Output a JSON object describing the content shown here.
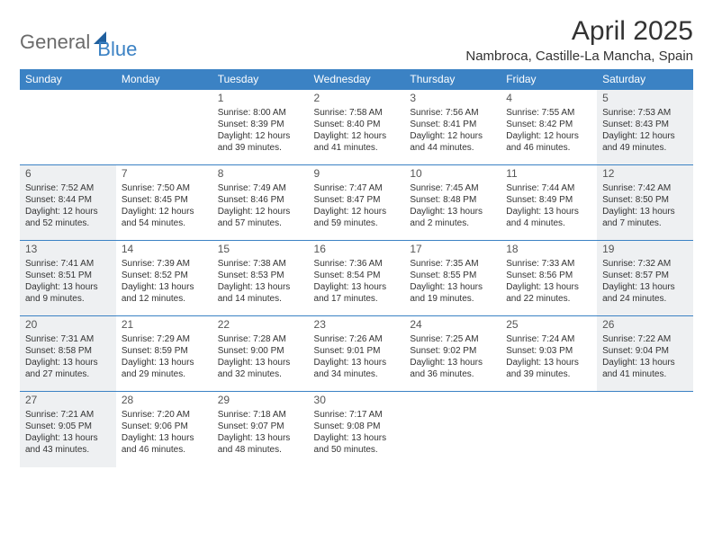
{
  "logo": {
    "general": "General",
    "blue": "Blue"
  },
  "title": "April 2025",
  "location": "Nambroca, Castille-La Mancha, Spain",
  "colors": {
    "header_bg": "#3b82c4",
    "header_text": "#ffffff",
    "border": "#3b82c4",
    "shaded_bg": "#eef0f2",
    "text": "#333333",
    "logo_gray": "#6b6b6b",
    "logo_blue": "#3b82c4"
  },
  "day_headers": [
    "Sunday",
    "Monday",
    "Tuesday",
    "Wednesday",
    "Thursday",
    "Friday",
    "Saturday"
  ],
  "weeks": [
    [
      null,
      null,
      {
        "n": "1",
        "sr": "Sunrise: 8:00 AM",
        "ss": "Sunset: 8:39 PM",
        "dl": "Daylight: 12 hours and 39 minutes."
      },
      {
        "n": "2",
        "sr": "Sunrise: 7:58 AM",
        "ss": "Sunset: 8:40 PM",
        "dl": "Daylight: 12 hours and 41 minutes."
      },
      {
        "n": "3",
        "sr": "Sunrise: 7:56 AM",
        "ss": "Sunset: 8:41 PM",
        "dl": "Daylight: 12 hours and 44 minutes."
      },
      {
        "n": "4",
        "sr": "Sunrise: 7:55 AM",
        "ss": "Sunset: 8:42 PM",
        "dl": "Daylight: 12 hours and 46 minutes."
      },
      {
        "n": "5",
        "sr": "Sunrise: 7:53 AM",
        "ss": "Sunset: 8:43 PM",
        "dl": "Daylight: 12 hours and 49 minutes."
      }
    ],
    [
      {
        "n": "6",
        "sr": "Sunrise: 7:52 AM",
        "ss": "Sunset: 8:44 PM",
        "dl": "Daylight: 12 hours and 52 minutes."
      },
      {
        "n": "7",
        "sr": "Sunrise: 7:50 AM",
        "ss": "Sunset: 8:45 PM",
        "dl": "Daylight: 12 hours and 54 minutes."
      },
      {
        "n": "8",
        "sr": "Sunrise: 7:49 AM",
        "ss": "Sunset: 8:46 PM",
        "dl": "Daylight: 12 hours and 57 minutes."
      },
      {
        "n": "9",
        "sr": "Sunrise: 7:47 AM",
        "ss": "Sunset: 8:47 PM",
        "dl": "Daylight: 12 hours and 59 minutes."
      },
      {
        "n": "10",
        "sr": "Sunrise: 7:45 AM",
        "ss": "Sunset: 8:48 PM",
        "dl": "Daylight: 13 hours and 2 minutes."
      },
      {
        "n": "11",
        "sr": "Sunrise: 7:44 AM",
        "ss": "Sunset: 8:49 PM",
        "dl": "Daylight: 13 hours and 4 minutes."
      },
      {
        "n": "12",
        "sr": "Sunrise: 7:42 AM",
        "ss": "Sunset: 8:50 PM",
        "dl": "Daylight: 13 hours and 7 minutes."
      }
    ],
    [
      {
        "n": "13",
        "sr": "Sunrise: 7:41 AM",
        "ss": "Sunset: 8:51 PM",
        "dl": "Daylight: 13 hours and 9 minutes."
      },
      {
        "n": "14",
        "sr": "Sunrise: 7:39 AM",
        "ss": "Sunset: 8:52 PM",
        "dl": "Daylight: 13 hours and 12 minutes."
      },
      {
        "n": "15",
        "sr": "Sunrise: 7:38 AM",
        "ss": "Sunset: 8:53 PM",
        "dl": "Daylight: 13 hours and 14 minutes."
      },
      {
        "n": "16",
        "sr": "Sunrise: 7:36 AM",
        "ss": "Sunset: 8:54 PM",
        "dl": "Daylight: 13 hours and 17 minutes."
      },
      {
        "n": "17",
        "sr": "Sunrise: 7:35 AM",
        "ss": "Sunset: 8:55 PM",
        "dl": "Daylight: 13 hours and 19 minutes."
      },
      {
        "n": "18",
        "sr": "Sunrise: 7:33 AM",
        "ss": "Sunset: 8:56 PM",
        "dl": "Daylight: 13 hours and 22 minutes."
      },
      {
        "n": "19",
        "sr": "Sunrise: 7:32 AM",
        "ss": "Sunset: 8:57 PM",
        "dl": "Daylight: 13 hours and 24 minutes."
      }
    ],
    [
      {
        "n": "20",
        "sr": "Sunrise: 7:31 AM",
        "ss": "Sunset: 8:58 PM",
        "dl": "Daylight: 13 hours and 27 minutes."
      },
      {
        "n": "21",
        "sr": "Sunrise: 7:29 AM",
        "ss": "Sunset: 8:59 PM",
        "dl": "Daylight: 13 hours and 29 minutes."
      },
      {
        "n": "22",
        "sr": "Sunrise: 7:28 AM",
        "ss": "Sunset: 9:00 PM",
        "dl": "Daylight: 13 hours and 32 minutes."
      },
      {
        "n": "23",
        "sr": "Sunrise: 7:26 AM",
        "ss": "Sunset: 9:01 PM",
        "dl": "Daylight: 13 hours and 34 minutes."
      },
      {
        "n": "24",
        "sr": "Sunrise: 7:25 AM",
        "ss": "Sunset: 9:02 PM",
        "dl": "Daylight: 13 hours and 36 minutes."
      },
      {
        "n": "25",
        "sr": "Sunrise: 7:24 AM",
        "ss": "Sunset: 9:03 PM",
        "dl": "Daylight: 13 hours and 39 minutes."
      },
      {
        "n": "26",
        "sr": "Sunrise: 7:22 AM",
        "ss": "Sunset: 9:04 PM",
        "dl": "Daylight: 13 hours and 41 minutes."
      }
    ],
    [
      {
        "n": "27",
        "sr": "Sunrise: 7:21 AM",
        "ss": "Sunset: 9:05 PM",
        "dl": "Daylight: 13 hours and 43 minutes."
      },
      {
        "n": "28",
        "sr": "Sunrise: 7:20 AM",
        "ss": "Sunset: 9:06 PM",
        "dl": "Daylight: 13 hours and 46 minutes."
      },
      {
        "n": "29",
        "sr": "Sunrise: 7:18 AM",
        "ss": "Sunset: 9:07 PM",
        "dl": "Daylight: 13 hours and 48 minutes."
      },
      {
        "n": "30",
        "sr": "Sunrise: 7:17 AM",
        "ss": "Sunset: 9:08 PM",
        "dl": "Daylight: 13 hours and 50 minutes."
      },
      null,
      null,
      null
    ]
  ]
}
